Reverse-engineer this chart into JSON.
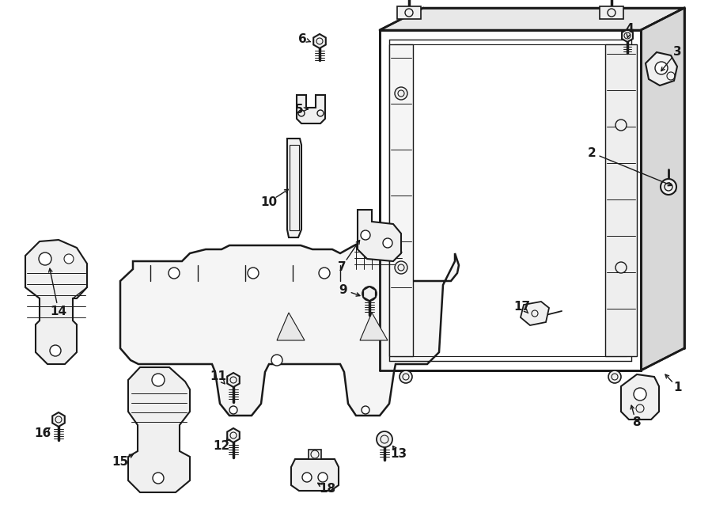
{
  "bg": "#ffffff",
  "lc": "#1a1a1a",
  "fw": 9.0,
  "fh": 6.62,
  "dpi": 100
}
